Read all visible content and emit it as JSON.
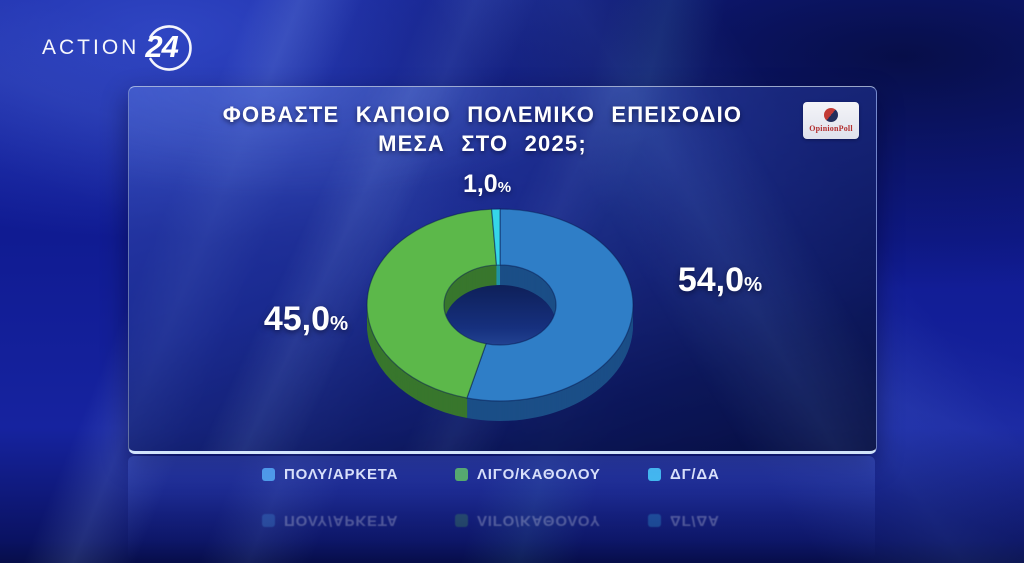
{
  "branding": {
    "channel_name": "ACTION",
    "channel_number": "24",
    "pollster": "OpinionPoll"
  },
  "panel": {
    "title_line1": "ΦΟΒΑΣΤΕ ΚΑΠΟΙΟ ΠΟΛΕΜΙΚΟ ΕΠΕΙΣΟΔΙΟ",
    "title_line2": "ΜΕΣΑ ΣΤΟ 2025;"
  },
  "chart_data": {
    "type": "pie",
    "donut": true,
    "title": "ΦΟΒΑΣΤΕ ΚΑΠΟΙΟ ΠΟΛΕΜΙΚΟ ΕΠΕΙΣΟΔΙΟ ΜΕΣΑ ΣΤΟ 2025;",
    "start_angle_deg": 0,
    "direction": "clockwise",
    "percent_sign": "%",
    "legend_position": "bottom",
    "slices": [
      {
        "label": "ΠΟΛΥ/ΑΡΚΕΤΑ",
        "value": 54.0,
        "display": "54,0",
        "color": "#2f7ec7",
        "side_color": "#1b4e87",
        "legend_color": "#4aa3e8"
      },
      {
        "label": "ΛΙΓΟ/ΚΑΘΟΛΟΥ",
        "value": 45.0,
        "display": "45,0",
        "color": "#5cb84a",
        "side_color": "#38762d",
        "legend_color": "#55b84a"
      },
      {
        "label": "ΔΓ/ΔΑ",
        "value": 1.0,
        "display": "1,0",
        "color": "#35d6e8",
        "side_color": "#1f93a6",
        "legend_color": "#3cc8f0"
      }
    ]
  }
}
